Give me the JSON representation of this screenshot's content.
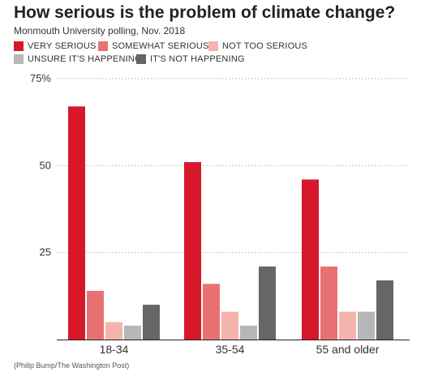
{
  "title": "How serious is the problem of climate change?",
  "subtitle": "Monmouth University polling, Nov. 2018",
  "source": "(Philip Bump/The Washington Post)",
  "chart_data": {
    "type": "bar",
    "categories": [
      "18-34",
      "35-54",
      "55 and older"
    ],
    "series": [
      {
        "name": "VERY SERIOUS",
        "color": "#d7182a",
        "values": [
          67,
          51,
          46
        ]
      },
      {
        "name": "SOMEWHAT SERIOUS",
        "color": "#e87272",
        "values": [
          14,
          16,
          21
        ]
      },
      {
        "name": "NOT TOO SERIOUS",
        "color": "#f4b3ab",
        "values": [
          5,
          8,
          8
        ]
      },
      {
        "name": "UNSURE IT'S HAPPENING",
        "color": "#b7b7b7",
        "values": [
          4,
          4,
          8
        ]
      },
      {
        "name": "IT'S NOT HAPPENING",
        "color": "#666666",
        "values": [
          10,
          21,
          17
        ]
      }
    ],
    "yticks": [
      {
        "value": 25,
        "label": "25"
      },
      {
        "value": 50,
        "label": "50"
      },
      {
        "value": 75,
        "label": "75%"
      }
    ],
    "ylim": [
      0,
      75
    ],
    "grid": true,
    "legend_position": "top-left"
  }
}
